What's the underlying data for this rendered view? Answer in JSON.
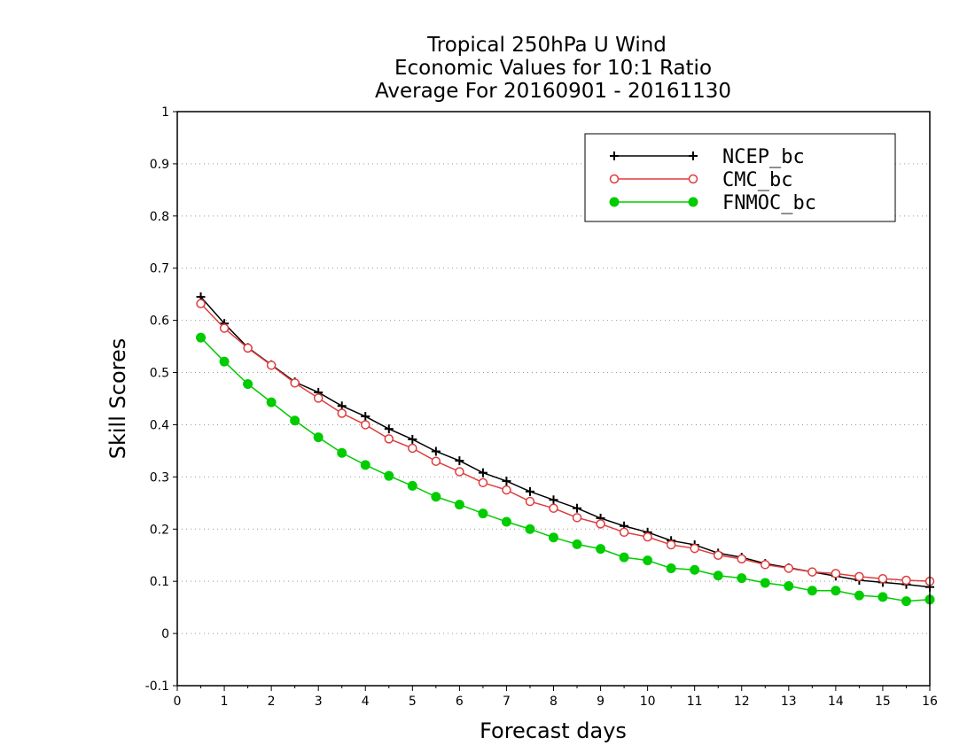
{
  "chart_data": {
    "type": "line",
    "title_lines": [
      "Tropical 250hPa U Wind",
      "Economic Values for 10:1 Ratio",
      "Average For 20160901 - 20161130"
    ],
    "xlabel": "Forecast days",
    "ylabel": "Skill Scores",
    "xlim": [
      0,
      16
    ],
    "ylim": [
      -0.1,
      1
    ],
    "x_ticks": [
      "0",
      "1",
      "2",
      "3",
      "4",
      "5",
      "6",
      "7",
      "8",
      "9",
      "10",
      "11",
      "12",
      "13",
      "14",
      "15",
      "16"
    ],
    "y_ticks": [
      "-0.1",
      "0",
      "0.1",
      "0.2",
      "0.3",
      "0.4",
      "0.5",
      "0.6",
      "0.7",
      "0.8",
      "0.9",
      "1"
    ],
    "grid": "horizontal dotted",
    "legend_position": "top-right",
    "x": [
      0.5,
      1,
      1.5,
      2,
      2.5,
      3,
      3.5,
      4,
      4.5,
      5,
      5.5,
      6,
      6.5,
      7,
      7.5,
      8,
      8.5,
      9,
      9.5,
      10,
      10.5,
      11,
      11.5,
      12,
      12.5,
      13,
      13.5,
      14,
      14.5,
      15,
      15.5,
      16
    ],
    "series": [
      {
        "name": "NCEP_bc",
        "color": "#000000",
        "marker": "plus",
        "values": [
          0.645,
          0.594,
          0.548,
          0.515,
          0.482,
          0.462,
          0.436,
          0.416,
          0.392,
          0.372,
          0.349,
          0.331,
          0.308,
          0.292,
          0.272,
          0.256,
          0.24,
          0.221,
          0.206,
          0.194,
          0.178,
          0.17,
          0.154,
          0.146,
          0.134,
          0.126,
          0.118,
          0.11,
          0.102,
          0.098,
          0.094,
          0.089
        ]
      },
      {
        "name": "CMC_bc",
        "color": "#e03c3c",
        "marker": "open-circle",
        "values": [
          0.632,
          0.585,
          0.547,
          0.514,
          0.48,
          0.451,
          0.422,
          0.4,
          0.373,
          0.355,
          0.33,
          0.31,
          0.289,
          0.275,
          0.253,
          0.24,
          0.222,
          0.21,
          0.194,
          0.185,
          0.17,
          0.163,
          0.15,
          0.143,
          0.132,
          0.125,
          0.118,
          0.115,
          0.109,
          0.105,
          0.102,
          0.1
        ]
      },
      {
        "name": "FNMOC_bc",
        "color": "#00cc00",
        "marker": "filled-circle",
        "values": [
          0.567,
          0.521,
          0.478,
          0.443,
          0.408,
          0.376,
          0.346,
          0.323,
          0.302,
          0.283,
          0.262,
          0.247,
          0.23,
          0.214,
          0.2,
          0.184,
          0.171,
          0.162,
          0.146,
          0.14,
          0.125,
          0.122,
          0.111,
          0.106,
          0.097,
          0.091,
          0.082,
          0.082,
          0.073,
          0.07,
          0.062,
          0.065
        ]
      }
    ]
  }
}
